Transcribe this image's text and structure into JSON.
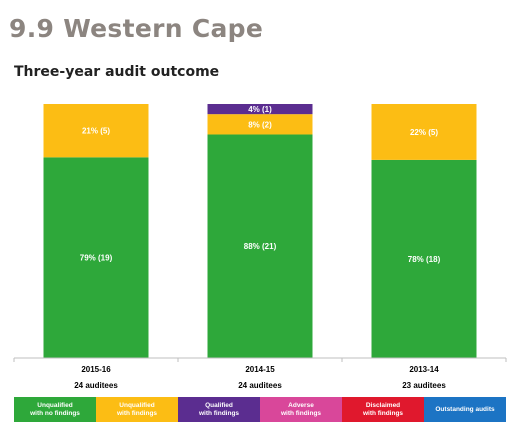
{
  "page": {
    "section_title": "9.9 Western Cape",
    "chart_title": "Three-year audit outcome"
  },
  "chart_data": {
    "type": "bar",
    "stacked": true,
    "categories": [
      "2015-16",
      "2014-15",
      "2013-14"
    ],
    "auditees": [
      "24 auditees",
      "24 auditees",
      "23 auditees"
    ],
    "ylim": [
      0,
      100
    ],
    "series": [
      {
        "name": "Unqualified with no findings",
        "color": "#2ea83a",
        "values": [
          79,
          88,
          78
        ],
        "labels": [
          "79% (19)",
          "88% (21)",
          "78% (18)"
        ]
      },
      {
        "name": "Unqualified with findings",
        "color": "#fcbd14",
        "values": [
          21,
          8,
          22
        ],
        "labels": [
          "21% (5)",
          "8% (2)",
          "22% (5)"
        ]
      },
      {
        "name": "Qualified with findings",
        "color": "#5b2d90",
        "values": [
          0,
          4,
          0
        ],
        "labels": [
          "",
          "4% (1)",
          ""
        ]
      },
      {
        "name": "Adverse with findings",
        "color": "#d9479a",
        "values": [
          0,
          0,
          0
        ],
        "labels": [
          "",
          "",
          ""
        ]
      },
      {
        "name": "Disclaimed with findings",
        "color": "#e0182d",
        "values": [
          0,
          0,
          0
        ],
        "labels": [
          "",
          "",
          ""
        ]
      },
      {
        "name": "Outstanding audits",
        "color": "#1c74c4",
        "values": [
          0,
          0,
          0
        ],
        "labels": [
          "",
          "",
          ""
        ]
      }
    ]
  },
  "legend": [
    {
      "text": "Unqualified\nwith no findings",
      "color": "#2ea83a"
    },
    {
      "text": "Unqualified\nwith findings",
      "color": "#fcbd14"
    },
    {
      "text": "Qualified\nwith findings",
      "color": "#5b2d90"
    },
    {
      "text": "Adverse\nwith findings",
      "color": "#d9479a"
    },
    {
      "text": "Disclaimed\nwith findings",
      "color": "#e0182d"
    },
    {
      "text": "Outstanding audits",
      "color": "#1c74c4"
    }
  ]
}
